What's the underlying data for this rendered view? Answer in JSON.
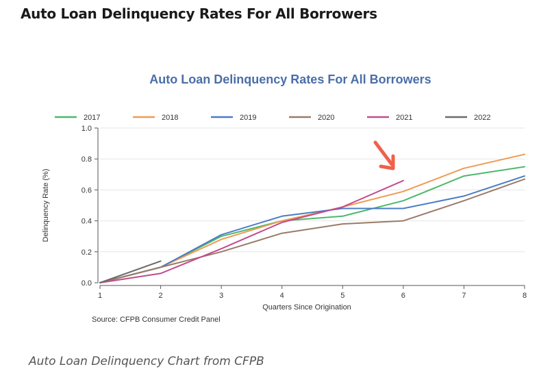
{
  "page": {
    "heading": "Auto Loan Delinquency Rates For All Borrowers",
    "caption": "Auto Loan Delinquency Chart from CFPB"
  },
  "chart_data": {
    "type": "line",
    "title": "Auto Loan Delinquency Rates For All Borrowers",
    "xlabel": "Quarters Since Origination",
    "ylabel": "Delinquency Rate (%)",
    "x": [
      1,
      2,
      3,
      4,
      5,
      6,
      7,
      8
    ],
    "xlim": [
      1,
      8
    ],
    "ylim": [
      0,
      1.0
    ],
    "yticks": [
      "0.0",
      "0.2",
      "0.4",
      "0.6",
      "0.8",
      "1.0"
    ],
    "xticks": [
      "1",
      "2",
      "3",
      "4",
      "5",
      "6",
      "7",
      "8"
    ],
    "grid": "horizontal",
    "legend_position": "top",
    "source": "Source: CFPB Consumer Credit Panel",
    "annotation": "red arrow pointing to end of 2021 line at quarter 6",
    "series": [
      {
        "name": "2017",
        "color": "#4cb86a",
        "values": [
          0.0,
          0.1,
          0.3,
          0.4,
          0.43,
          0.53,
          0.69,
          0.75
        ]
      },
      {
        "name": "2018",
        "color": "#f09a50",
        "values": [
          0.0,
          0.1,
          0.28,
          0.4,
          0.49,
          0.59,
          0.74,
          0.83
        ]
      },
      {
        "name": "2019",
        "color": "#4a7cc6",
        "values": [
          0.0,
          0.1,
          0.31,
          0.43,
          0.48,
          0.48,
          0.56,
          0.69
        ]
      },
      {
        "name": "2020",
        "color": "#9a7a68",
        "values": [
          0.0,
          0.1,
          0.2,
          0.32,
          0.38,
          0.4,
          0.53,
          0.67
        ]
      },
      {
        "name": "2021",
        "color": "#c24a8c",
        "values": [
          0.0,
          0.06,
          0.22,
          0.39,
          0.49,
          0.66,
          null,
          null
        ]
      },
      {
        "name": "2022",
        "color": "#6a6a6a",
        "values": [
          0.0,
          0.14,
          null,
          null,
          null,
          null,
          null,
          null
        ]
      }
    ]
  }
}
